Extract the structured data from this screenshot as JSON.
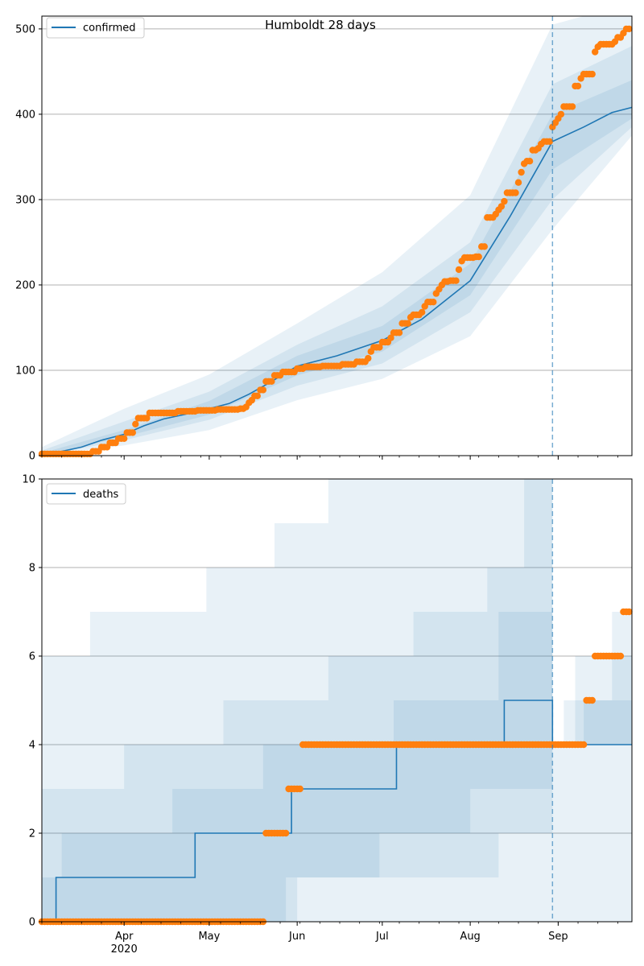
{
  "figure": {
    "title": "Humboldt 28 days"
  },
  "colors": {
    "model": "#1f77b4",
    "observed": "#ff7f0e",
    "band": "#1f77b4",
    "grid": "#b0b0b0",
    "axis": "#000000"
  },
  "chart_data": [
    {
      "type": "line",
      "name": "confirmed panel",
      "title": "Humboldt 28 days",
      "legend": {
        "label": "confirmed",
        "placement": "top-left"
      },
      "x_range": [
        "2020-03-03",
        "2020-09-27"
      ],
      "xtick_labels": [],
      "ylim": [
        0,
        515
      ],
      "yticks": [
        0,
        100,
        200,
        300,
        400,
        500
      ],
      "grid": "horizontal",
      "forecast_start": "2020-08-30",
      "model_median": [
        {
          "x": "2020-03-03",
          "y": 0
        },
        {
          "x": "2020-03-10",
          "y": 5
        },
        {
          "x": "2020-03-17",
          "y": 10
        },
        {
          "x": "2020-03-24",
          "y": 18
        },
        {
          "x": "2020-04-01",
          "y": 25
        },
        {
          "x": "2020-04-08",
          "y": 35
        },
        {
          "x": "2020-04-15",
          "y": 43
        },
        {
          "x": "2020-04-22",
          "y": 48
        },
        {
          "x": "2020-05-01",
          "y": 55
        },
        {
          "x": "2020-05-08",
          "y": 61
        },
        {
          "x": "2020-05-15",
          "y": 72
        },
        {
          "x": "2020-05-22",
          "y": 85
        },
        {
          "x": "2020-06-01",
          "y": 105
        },
        {
          "x": "2020-06-15",
          "y": 117
        },
        {
          "x": "2020-07-01",
          "y": 135
        },
        {
          "x": "2020-07-15",
          "y": 160
        },
        {
          "x": "2020-08-01",
          "y": 205
        },
        {
          "x": "2020-08-15",
          "y": 280
        },
        {
          "x": "2020-08-30",
          "y": 368
        },
        {
          "x": "2020-09-10",
          "y": 385
        },
        {
          "x": "2020-09-20",
          "y": 402
        },
        {
          "x": "2020-09-27",
          "y": 408
        }
      ],
      "bands": [
        {
          "level": "outer",
          "lower": [
            {
              "x": "2020-03-03",
              "y": 0
            },
            {
              "x": "2020-04-01",
              "y": 12
            },
            {
              "x": "2020-05-01",
              "y": 30
            },
            {
              "x": "2020-06-01",
              "y": 65
            },
            {
              "x": "2020-07-01",
              "y": 90
            },
            {
              "x": "2020-08-01",
              "y": 140
            },
            {
              "x": "2020-08-30",
              "y": 265
            },
            {
              "x": "2020-09-27",
              "y": 375
            }
          ],
          "upper": [
            {
              "x": "2020-03-03",
              "y": 10
            },
            {
              "x": "2020-04-01",
              "y": 55
            },
            {
              "x": "2020-05-01",
              "y": 95
            },
            {
              "x": "2020-06-01",
              "y": 155
            },
            {
              "x": "2020-07-01",
              "y": 215
            },
            {
              "x": "2020-08-01",
              "y": 305
            },
            {
              "x": "2020-08-30",
              "y": 505
            },
            {
              "x": "2020-09-10",
              "y": 515
            },
            {
              "x": "2020-09-27",
              "y": 515
            }
          ]
        },
        {
          "level": "middle",
          "lower": [
            {
              "x": "2020-03-03",
              "y": 0
            },
            {
              "x": "2020-04-01",
              "y": 18
            },
            {
              "x": "2020-05-01",
              "y": 42
            },
            {
              "x": "2020-06-01",
              "y": 82
            },
            {
              "x": "2020-07-01",
              "y": 108
            },
            {
              "x": "2020-08-01",
              "y": 168
            },
            {
              "x": "2020-08-30",
              "y": 300
            },
            {
              "x": "2020-09-27",
              "y": 385
            }
          ],
          "upper": [
            {
              "x": "2020-03-03",
              "y": 6
            },
            {
              "x": "2020-04-01",
              "y": 40
            },
            {
              "x": "2020-05-01",
              "y": 75
            },
            {
              "x": "2020-06-01",
              "y": 130
            },
            {
              "x": "2020-07-01",
              "y": 175
            },
            {
              "x": "2020-08-01",
              "y": 250
            },
            {
              "x": "2020-08-30",
              "y": 435
            },
            {
              "x": "2020-09-27",
              "y": 480
            }
          ]
        },
        {
          "level": "inner",
          "lower": [
            {
              "x": "2020-03-03",
              "y": 0
            },
            {
              "x": "2020-04-01",
              "y": 22
            },
            {
              "x": "2020-05-01",
              "y": 48
            },
            {
              "x": "2020-06-01",
              "y": 94
            },
            {
              "x": "2020-07-01",
              "y": 122
            },
            {
              "x": "2020-08-01",
              "y": 188
            },
            {
              "x": "2020-08-30",
              "y": 335
            },
            {
              "x": "2020-09-27",
              "y": 395
            }
          ],
          "upper": [
            {
              "x": "2020-03-03",
              "y": 3
            },
            {
              "x": "2020-04-01",
              "y": 30
            },
            {
              "x": "2020-05-01",
              "y": 64
            },
            {
              "x": "2020-06-01",
              "y": 117
            },
            {
              "x": "2020-07-01",
              "y": 152
            },
            {
              "x": "2020-08-01",
              "y": 225
            },
            {
              "x": "2020-08-30",
              "y": 400
            },
            {
              "x": "2020-09-27",
              "y": 440
            }
          ]
        }
      ],
      "observed_steps": [
        {
          "x": "2020-03-03",
          "y": 2
        },
        {
          "x": "2020-03-21",
          "y": 5
        },
        {
          "x": "2020-03-24",
          "y": 10
        },
        {
          "x": "2020-03-27",
          "y": 15
        },
        {
          "x": "2020-03-30",
          "y": 20
        },
        {
          "x": "2020-04-02",
          "y": 27
        },
        {
          "x": "2020-04-05",
          "y": 37
        },
        {
          "x": "2020-04-06",
          "y": 44
        },
        {
          "x": "2020-04-10",
          "y": 50
        },
        {
          "x": "2020-04-20",
          "y": 52
        },
        {
          "x": "2020-04-27",
          "y": 53
        },
        {
          "x": "2020-05-04",
          "y": 54
        },
        {
          "x": "2020-05-12",
          "y": 55
        },
        {
          "x": "2020-05-14",
          "y": 57
        },
        {
          "x": "2020-05-15",
          "y": 62
        },
        {
          "x": "2020-05-16",
          "y": 65
        },
        {
          "x": "2020-05-17",
          "y": 70
        },
        {
          "x": "2020-05-19",
          "y": 77
        },
        {
          "x": "2020-05-21",
          "y": 87
        },
        {
          "x": "2020-05-24",
          "y": 94
        },
        {
          "x": "2020-05-27",
          "y": 98
        },
        {
          "x": "2020-06-01",
          "y": 102
        },
        {
          "x": "2020-06-04",
          "y": 104
        },
        {
          "x": "2020-06-10",
          "y": 105
        },
        {
          "x": "2020-06-17",
          "y": 107
        },
        {
          "x": "2020-06-22",
          "y": 110
        },
        {
          "x": "2020-06-26",
          "y": 114
        },
        {
          "x": "2020-06-27",
          "y": 122
        },
        {
          "x": "2020-06-28",
          "y": 127
        },
        {
          "x": "2020-07-01",
          "y": 133
        },
        {
          "x": "2020-07-04",
          "y": 138
        },
        {
          "x": "2020-07-05",
          "y": 144
        },
        {
          "x": "2020-07-08",
          "y": 155
        },
        {
          "x": "2020-07-11",
          "y": 162
        },
        {
          "x": "2020-07-12",
          "y": 165
        },
        {
          "x": "2020-07-15",
          "y": 168
        },
        {
          "x": "2020-07-16",
          "y": 175
        },
        {
          "x": "2020-07-17",
          "y": 180
        },
        {
          "x": "2020-07-20",
          "y": 190
        },
        {
          "x": "2020-07-21",
          "y": 195
        },
        {
          "x": "2020-07-22",
          "y": 200
        },
        {
          "x": "2020-07-23",
          "y": 204
        },
        {
          "x": "2020-07-25",
          "y": 205
        },
        {
          "x": "2020-07-28",
          "y": 218
        },
        {
          "x": "2020-07-29",
          "y": 228
        },
        {
          "x": "2020-07-30",
          "y": 232
        },
        {
          "x": "2020-08-03",
          "y": 233
        },
        {
          "x": "2020-08-05",
          "y": 245
        },
        {
          "x": "2020-08-07",
          "y": 279
        },
        {
          "x": "2020-08-10",
          "y": 283
        },
        {
          "x": "2020-08-11",
          "y": 288
        },
        {
          "x": "2020-08-12",
          "y": 292
        },
        {
          "x": "2020-08-13",
          "y": 298
        },
        {
          "x": "2020-08-14",
          "y": 308
        },
        {
          "x": "2020-08-18",
          "y": 320
        },
        {
          "x": "2020-08-19",
          "y": 332
        },
        {
          "x": "2020-08-20",
          "y": 342
        },
        {
          "x": "2020-08-21",
          "y": 345
        },
        {
          "x": "2020-08-23",
          "y": 358
        },
        {
          "x": "2020-08-25",
          "y": 360
        },
        {
          "x": "2020-08-26",
          "y": 365
        },
        {
          "x": "2020-08-27",
          "y": 368
        },
        {
          "x": "2020-08-30",
          "y": 385
        },
        {
          "x": "2020-08-31",
          "y": 390
        },
        {
          "x": "2020-09-01",
          "y": 395
        },
        {
          "x": "2020-09-02",
          "y": 400
        },
        {
          "x": "2020-09-03",
          "y": 409
        },
        {
          "x": "2020-09-07",
          "y": 433
        },
        {
          "x": "2020-09-09",
          "y": 442
        },
        {
          "x": "2020-09-10",
          "y": 447
        },
        {
          "x": "2020-09-14",
          "y": 473
        },
        {
          "x": "2020-09-15",
          "y": 479
        },
        {
          "x": "2020-09-16",
          "y": 482
        },
        {
          "x": "2020-09-21",
          "y": 485
        },
        {
          "x": "2020-09-22",
          "y": 490
        },
        {
          "x": "2020-09-24",
          "y": 495
        },
        {
          "x": "2020-09-25",
          "y": 500
        },
        {
          "x": "2020-09-26",
          "y": 500
        }
      ]
    },
    {
      "type": "line",
      "name": "deaths panel",
      "legend": {
        "label": "deaths",
        "placement": "top-left"
      },
      "x_range": [
        "2020-03-03",
        "2020-09-27"
      ],
      "xticks": [
        {
          "x": "2020-04-01",
          "label": "Apr",
          "sublabel": "2020"
        },
        {
          "x": "2020-05-01",
          "label": "May"
        },
        {
          "x": "2020-06-01",
          "label": "Jun"
        },
        {
          "x": "2020-07-01",
          "label": "Jul"
        },
        {
          "x": "2020-08-01",
          "label": "Aug"
        },
        {
          "x": "2020-09-01",
          "label": "Sep"
        }
      ],
      "ylim": [
        0,
        10
      ],
      "yticks": [
        0,
        2,
        4,
        6,
        8,
        10
      ],
      "grid": "horizontal",
      "forecast_start": "2020-08-30",
      "model_median_steps": [
        {
          "x": "2020-03-03",
          "y": 0
        },
        {
          "x": "2020-03-08",
          "y": 1
        },
        {
          "x": "2020-04-26",
          "y": 2
        },
        {
          "x": "2020-05-30",
          "y": 3
        },
        {
          "x": "2020-07-06",
          "y": 4
        },
        {
          "x": "2020-08-13",
          "y": 5
        },
        {
          "x": "2020-08-30",
          "y": 4
        }
      ],
      "bands": [
        {
          "level": "outer",
          "lower_steps": [
            {
              "x": "2020-03-03",
              "y": 0
            }
          ],
          "upper_steps": [
            {
              "x": "2020-03-03",
              "y": 6
            },
            {
              "x": "2020-03-20",
              "y": 7
            },
            {
              "x": "2020-04-30",
              "y": 8
            },
            {
              "x": "2020-05-24",
              "y": 9
            },
            {
              "x": "2020-06-12",
              "y": 10
            },
            {
              "x": "2020-08-30",
              "y": 4
            },
            {
              "x": "2020-09-07",
              "y": 6
            },
            {
              "x": "2020-09-20",
              "y": 7
            },
            {
              "x": "2020-09-27",
              "y": 7
            }
          ]
        },
        {
          "level": "middle",
          "lower_steps": [
            {
              "x": "2020-03-03",
              "y": 0
            },
            {
              "x": "2020-06-01",
              "y": 1
            },
            {
              "x": "2020-08-11",
              "y": 2
            },
            {
              "x": "2020-08-30",
              "y": 4
            }
          ],
          "upper_steps": [
            {
              "x": "2020-03-03",
              "y": 3
            },
            {
              "x": "2020-04-01",
              "y": 4
            },
            {
              "x": "2020-05-06",
              "y": 5
            },
            {
              "x": "2020-06-12",
              "y": 6
            },
            {
              "x": "2020-07-12",
              "y": 7
            },
            {
              "x": "2020-08-07",
              "y": 8
            },
            {
              "x": "2020-08-20",
              "y": 10
            },
            {
              "x": "2020-08-30",
              "y": 4
            },
            {
              "x": "2020-09-03",
              "y": 5
            },
            {
              "x": "2020-09-20",
              "y": 6
            },
            {
              "x": "2020-09-27",
              "y": 6
            }
          ]
        },
        {
          "level": "inner",
          "lower_steps": [
            {
              "x": "2020-03-03",
              "y": 0
            },
            {
              "x": "2020-04-01",
              "y": 0
            },
            {
              "x": "2020-05-28",
              "y": 1
            },
            {
              "x": "2020-06-30",
              "y": 2
            },
            {
              "x": "2020-08-01",
              "y": 3
            },
            {
              "x": "2020-08-30",
              "y": 4
            }
          ],
          "upper_steps": [
            {
              "x": "2020-03-03",
              "y": 1
            },
            {
              "x": "2020-03-10",
              "y": 2
            },
            {
              "x": "2020-04-18",
              "y": 3
            },
            {
              "x": "2020-05-20",
              "y": 4
            },
            {
              "x": "2020-07-05",
              "y": 5
            },
            {
              "x": "2020-08-11",
              "y": 7
            },
            {
              "x": "2020-08-30",
              "y": 4
            },
            {
              "x": "2020-09-10",
              "y": 5
            },
            {
              "x": "2020-09-27",
              "y": 5
            }
          ]
        }
      ],
      "observed_steps": [
        {
          "x": "2020-03-03",
          "y": 0
        },
        {
          "x": "2020-05-21",
          "y": 2
        },
        {
          "x": "2020-05-29",
          "y": 3
        },
        {
          "x": "2020-06-03",
          "y": 4
        },
        {
          "x": "2020-09-11",
          "y": 5
        },
        {
          "x": "2020-09-14",
          "y": 6
        },
        {
          "x": "2020-09-24",
          "y": 7
        },
        {
          "x": "2020-09-26",
          "y": 7
        }
      ]
    }
  ]
}
